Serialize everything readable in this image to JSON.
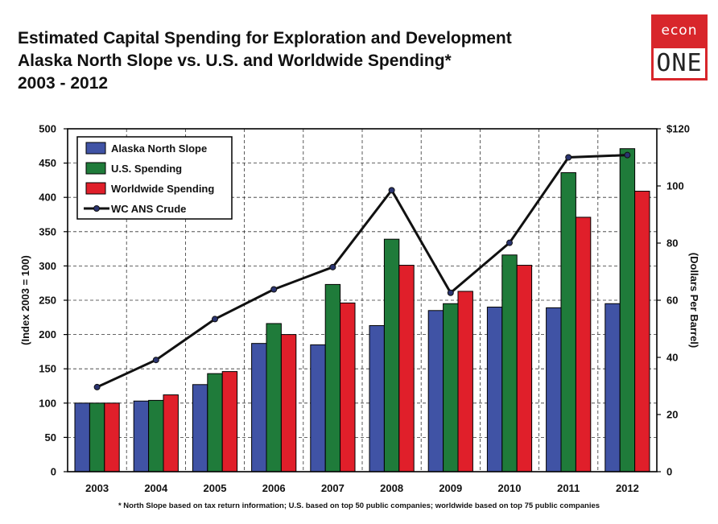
{
  "header": {
    "title_line1": "Estimated Capital Spending for Exploration and Development",
    "title_line2": "Alaska North Slope vs. U.S. and Worldwide Spending*",
    "title_line3": "2003 - 2012"
  },
  "logo": {
    "top_text": "econ",
    "bottom_text": "ONE",
    "color": "#d8262b"
  },
  "footnote": "* North Slope based on tax return information; U.S. based on top 50 public companies; worldwide based on top 75 public companies",
  "chart_data": {
    "type": "bar",
    "categories": [
      "2003",
      "2004",
      "2005",
      "2006",
      "2007",
      "2008",
      "2009",
      "2010",
      "2011",
      "2012"
    ],
    "series": [
      {
        "name": "Alaska North Slope",
        "color": "#4053a5",
        "axis": "left",
        "values": [
          100,
          103,
          127,
          187,
          185,
          213,
          235,
          240,
          239,
          245
        ]
      },
      {
        "name": "U.S. Spending",
        "color": "#1f7b3a",
        "axis": "left",
        "values": [
          100,
          104,
          143,
          216,
          273,
          339,
          245,
          316,
          436,
          471
        ]
      },
      {
        "name": "Worldwide Spending",
        "color": "#e01f2a",
        "axis": "left",
        "values": [
          100,
          112,
          146,
          200,
          246,
          301,
          263,
          301,
          371,
          409
        ]
      },
      {
        "name": "WC ANS Crude",
        "color": "#111111",
        "axis": "right",
        "type": "line",
        "values": [
          29.6,
          39.1,
          53.4,
          63.8,
          71.6,
          98.5,
          62.6,
          80.1,
          110.0,
          110.8
        ]
      }
    ],
    "ylabel": "(Index 2003 = 100)",
    "ylabel_right": "(Dollars Per Barrel)",
    "ylim": [
      0,
      500
    ],
    "yticks": [
      "0",
      "50",
      "100",
      "150",
      "200",
      "250",
      "300",
      "350",
      "400",
      "450",
      "500"
    ],
    "ylim_right": [
      0,
      120
    ],
    "yticks_right": [
      "0",
      "20",
      "40",
      "60",
      "80",
      "100",
      "$120"
    ],
    "grid": true,
    "legend_position": "top-left"
  }
}
